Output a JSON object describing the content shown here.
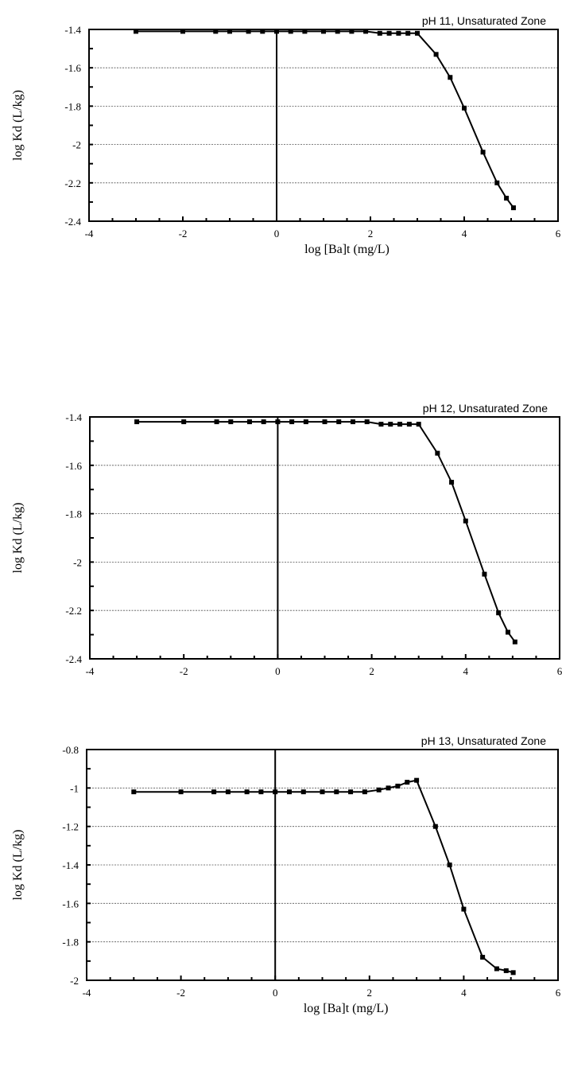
{
  "chart_data": [
    {
      "type": "line",
      "title": "pH 11, Unsaturated Zone",
      "xlabel": "log [Ba]t (mg/L)",
      "ylabel": "log Kd (L/kg)",
      "xlim": [
        -4,
        6
      ],
      "ylim": [
        -2.4,
        -1.4
      ],
      "xticks": [
        "-4",
        "-2",
        "0",
        "2",
        "4",
        "6"
      ],
      "yticks": [
        "-1.4",
        "-1.6",
        "-1.8",
        "-2",
        "-2.2",
        "-2.4"
      ],
      "grid": "horizontal-dashed",
      "series": [
        {
          "x": [
            -3,
            -2,
            -1.3,
            -1,
            -0.6,
            -0.3,
            0,
            0.3,
            0.6,
            1,
            1.3,
            1.6,
            1.9,
            2.2,
            2.4,
            2.6,
            2.8,
            3,
            3.4,
            3.7,
            4,
            4.4,
            4.7,
            4.9,
            5.05
          ],
          "y": [
            -1.41,
            -1.41,
            -1.41,
            -1.41,
            -1.41,
            -1.41,
            -1.41,
            -1.41,
            -1.41,
            -1.41,
            -1.41,
            -1.41,
            -1.41,
            -1.42,
            -1.42,
            -1.42,
            -1.42,
            -1.42,
            -1.53,
            -1.65,
            -1.81,
            -2.04,
            -2.2,
            -2.28,
            -2.33
          ]
        }
      ]
    },
    {
      "type": "line",
      "title": "pH 12, Unsaturated Zone",
      "xlabel": "",
      "ylabel": "log Kd (L/kg)",
      "xlim": [
        -4,
        6
      ],
      "ylim": [
        -2.4,
        -1.4
      ],
      "xticks": [
        "-4",
        "-2",
        "0",
        "2",
        "4",
        "6"
      ],
      "yticks": [
        "-1.4",
        "-1.6",
        "-1.8",
        "-2",
        "-2.2",
        "-2.4"
      ],
      "grid": "horizontal-dashed",
      "series": [
        {
          "x": [
            -3,
            -2,
            -1.3,
            -1,
            -0.6,
            -0.3,
            0,
            0.3,
            0.6,
            1,
            1.3,
            1.6,
            1.9,
            2.2,
            2.4,
            2.6,
            2.8,
            3,
            3.4,
            3.7,
            4,
            4.4,
            4.7,
            4.9,
            5.05
          ],
          "y": [
            -1.42,
            -1.42,
            -1.42,
            -1.42,
            -1.42,
            -1.42,
            -1.42,
            -1.42,
            -1.42,
            -1.42,
            -1.42,
            -1.42,
            -1.42,
            -1.43,
            -1.43,
            -1.43,
            -1.43,
            -1.43,
            -1.55,
            -1.67,
            -1.83,
            -2.05,
            -2.21,
            -2.29,
            -2.33
          ]
        }
      ]
    },
    {
      "type": "line",
      "title": "pH 13, Unsaturated Zone",
      "xlabel": "log [Ba]t (mg/L)",
      "ylabel": "log Kd (L/kg)",
      "xlim": [
        -4,
        6
      ],
      "ylim": [
        -2,
        -0.8
      ],
      "xticks": [
        "-4",
        "-2",
        "0",
        "2",
        "4",
        "6"
      ],
      "yticks": [
        "-0.8",
        "-1",
        "-1.2",
        "-1.4",
        "-1.6",
        "-1.8",
        "-2"
      ],
      "grid": "horizontal-dashed",
      "series": [
        {
          "x": [
            -3,
            -2,
            -1.3,
            -1,
            -0.6,
            -0.3,
            0,
            0.3,
            0.6,
            1,
            1.3,
            1.6,
            1.9,
            2.2,
            2.4,
            2.6,
            2.8,
            3,
            3.4,
            3.7,
            4,
            4.4,
            4.7,
            4.9,
            5.05
          ],
          "y": [
            -1.02,
            -1.02,
            -1.02,
            -1.02,
            -1.02,
            -1.02,
            -1.02,
            -1.02,
            -1.02,
            -1.02,
            -1.02,
            -1.02,
            -1.02,
            -1.01,
            -1.0,
            -0.99,
            -0.97,
            -0.96,
            -1.2,
            -1.4,
            -1.63,
            -1.88,
            -1.94,
            -1.95,
            -1.96
          ]
        }
      ]
    }
  ]
}
